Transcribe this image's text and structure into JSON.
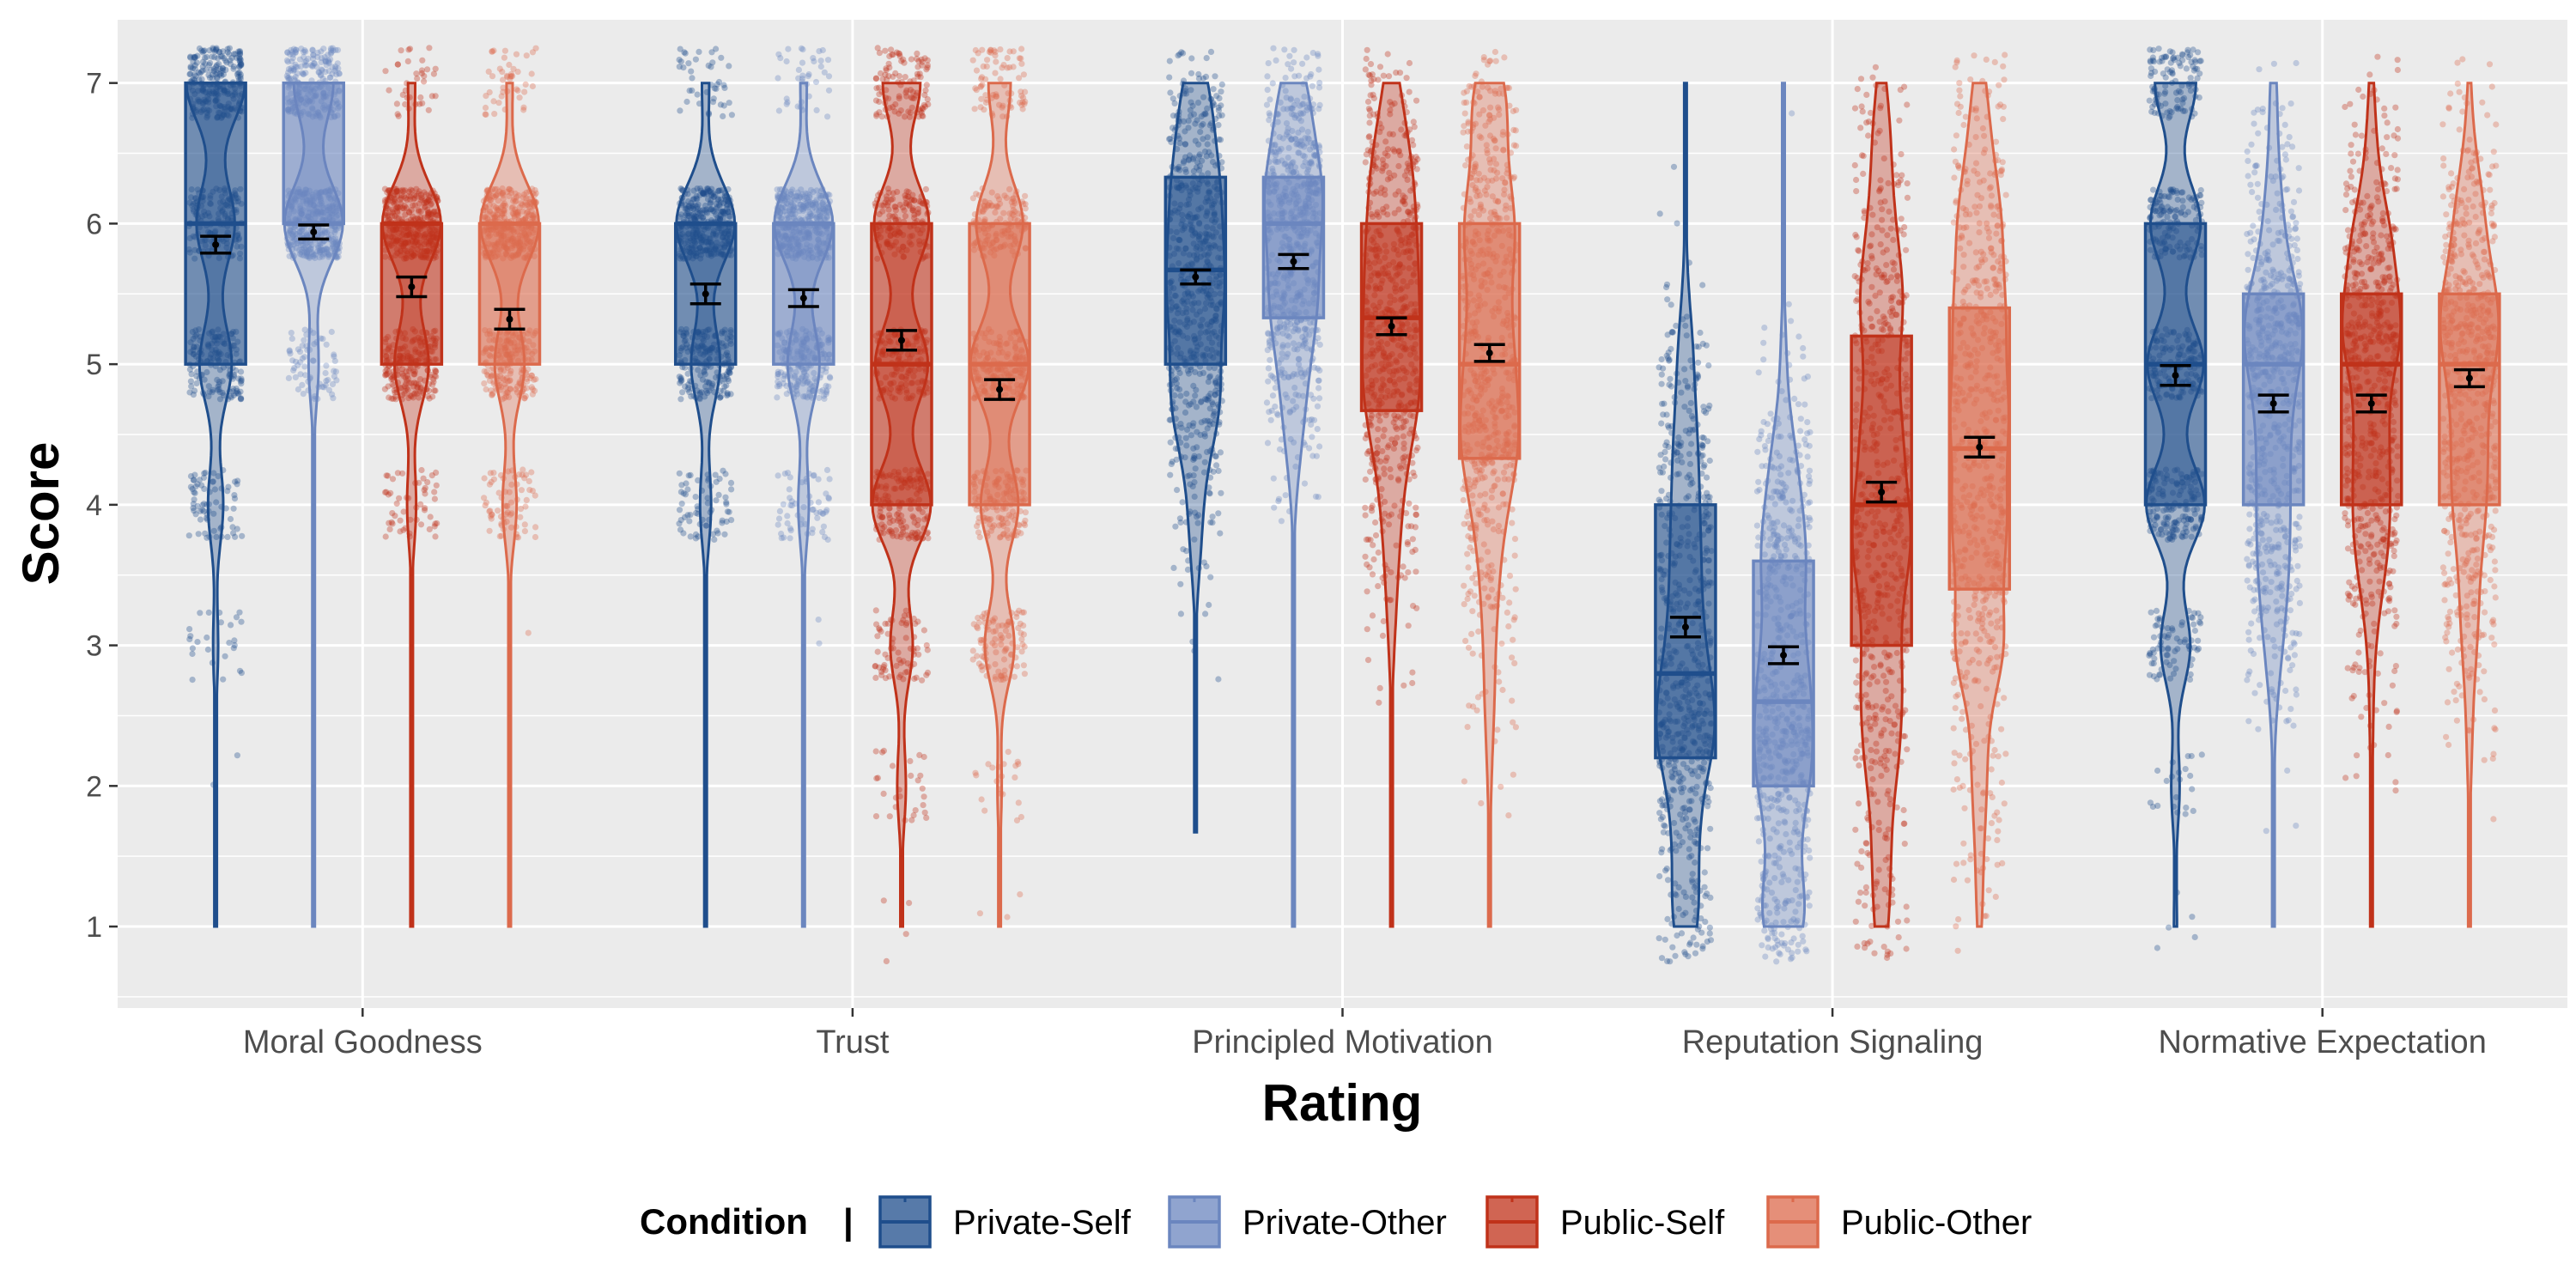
{
  "chart_data": {
    "type": "box",
    "xlabel": "Rating",
    "ylabel": "Score",
    "ylim": [
      0.42,
      7.45
    ],
    "yticks": [
      1,
      2,
      3,
      4,
      5,
      6,
      7
    ],
    "grid": true,
    "legend": {
      "title": "Condition",
      "separator": "|",
      "placement": "bottom"
    },
    "categories": [
      "Moral Goodness",
      "Trust",
      "Principled Motivation",
      "Reputation Signaling",
      "Normative Expectation"
    ],
    "series": [
      {
        "name": "Private-Self",
        "color": "#1f4e8c",
        "stats": [
          {
            "q1": 5,
            "median": 6,
            "q3": 7,
            "min": 1,
            "max": 7,
            "mean": 5.85,
            "se": 0.06
          },
          {
            "q1": 5,
            "median": 6,
            "q3": 6,
            "min": 1,
            "max": 7,
            "mean": 5.5,
            "se": 0.07
          },
          {
            "q1": 5,
            "median": 5.67,
            "q3": 6.33,
            "min": 1.67,
            "max": 7,
            "mean": 5.62,
            "se": 0.05
          },
          {
            "q1": 2.2,
            "median": 2.8,
            "q3": 4,
            "min": 1,
            "max": 7,
            "mean": 3.13,
            "se": 0.07
          },
          {
            "q1": 4,
            "median": 5,
            "q3": 6,
            "min": 1,
            "max": 7,
            "mean": 4.92,
            "se": 0.07
          }
        ]
      },
      {
        "name": "Private-Other",
        "color": "#6b86bf",
        "stats": [
          {
            "q1": 6,
            "median": 6,
            "q3": 7,
            "min": 1,
            "max": 7,
            "mean": 5.94,
            "se": 0.05
          },
          {
            "q1": 5,
            "median": 6,
            "q3": 6,
            "min": 1,
            "max": 7,
            "mean": 5.47,
            "se": 0.06
          },
          {
            "q1": 5.33,
            "median": 6,
            "q3": 6.33,
            "min": 1,
            "max": 7,
            "mean": 5.73,
            "se": 0.05
          },
          {
            "q1": 2,
            "median": 2.6,
            "q3": 3.6,
            "min": 1,
            "max": 7,
            "mean": 2.93,
            "se": 0.06
          },
          {
            "q1": 4,
            "median": 5,
            "q3": 5.5,
            "min": 1,
            "max": 7,
            "mean": 4.72,
            "se": 0.06
          }
        ]
      },
      {
        "name": "Public-Self",
        "color": "#c0321a",
        "stats": [
          {
            "q1": 5,
            "median": 6,
            "q3": 6,
            "min": 1,
            "max": 7,
            "mean": 5.55,
            "se": 0.07
          },
          {
            "q1": 4,
            "median": 5,
            "q3": 6,
            "min": 1,
            "max": 7,
            "mean": 5.17,
            "se": 0.07
          },
          {
            "q1": 4.67,
            "median": 5.33,
            "q3": 6,
            "min": 1,
            "max": 7,
            "mean": 5.27,
            "se": 0.06
          },
          {
            "q1": 3,
            "median": 4,
            "q3": 5.2,
            "min": 1,
            "max": 7,
            "mean": 4.09,
            "se": 0.07
          },
          {
            "q1": 4,
            "median": 5,
            "q3": 5.5,
            "min": 1,
            "max": 7,
            "mean": 4.72,
            "se": 0.06
          }
        ]
      },
      {
        "name": "Public-Other",
        "color": "#dc6a4c",
        "stats": [
          {
            "q1": 5,
            "median": 6,
            "q3": 6,
            "min": 1,
            "max": 7,
            "mean": 5.32,
            "se": 0.07
          },
          {
            "q1": 4,
            "median": 5,
            "q3": 6,
            "min": 1,
            "max": 7,
            "mean": 4.82,
            "se": 0.07
          },
          {
            "q1": 4.33,
            "median": 5,
            "q3": 6,
            "min": 1,
            "max": 7,
            "mean": 5.08,
            "se": 0.06
          },
          {
            "q1": 3.4,
            "median": 4.4,
            "q3": 5.4,
            "min": 1,
            "max": 7,
            "mean": 4.41,
            "se": 0.07
          },
          {
            "q1": 4,
            "median": 5,
            "q3": 5.5,
            "min": 1,
            "max": 7,
            "mean": 4.9,
            "se": 0.06
          }
        ]
      }
    ]
  }
}
